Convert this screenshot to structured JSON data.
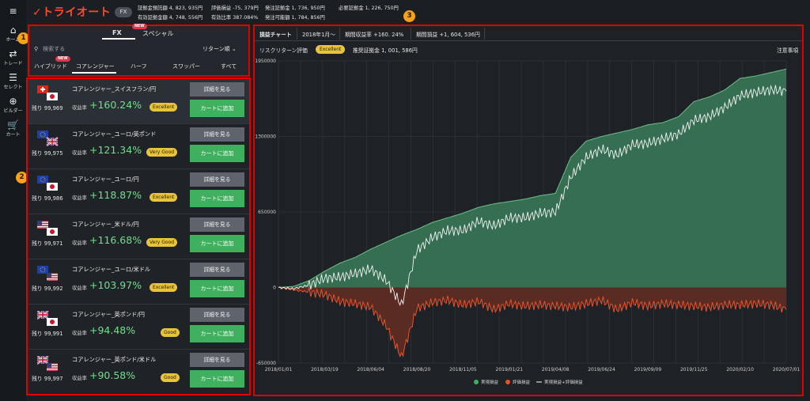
{
  "nav": {
    "items": [
      {
        "icon": "menu-icon",
        "label": ""
      },
      {
        "icon": "home-icon",
        "label": "ホーム"
      },
      {
        "icon": "trade-icon",
        "label": "トレード"
      },
      {
        "icon": "select-icon",
        "label": "セレクト"
      },
      {
        "icon": "builder-icon",
        "label": "ビルダー"
      },
      {
        "icon": "cart-icon",
        "label": "カート"
      }
    ]
  },
  "header": {
    "logo": "トライオート",
    "mode_pill": "FX",
    "stats": [
      "証拠金預託額 4, 823, 935円",
      "評価損益 -75, 379円",
      "発注証拠金 1, 736, 950円",
      "必要証拠金 1, 226, 750円",
      "有効証拠金額 4, 748, 556円",
      "有効比率 387.084%",
      "発注可能額 1, 784, 856円"
    ]
  },
  "markers": {
    "one": "1",
    "two": "2",
    "three": "3"
  },
  "filter": {
    "tabs": [
      "FX",
      "スペシャル"
    ],
    "new_badge": "NEW",
    "search_placeholder": "検索する",
    "sort_label": "リターン順",
    "categories": [
      "ハイブリッド",
      "コアレンジャー",
      "ハーフ",
      "スワッパー",
      "すべて"
    ],
    "active_category": "コアレンジャー"
  },
  "strategies": [
    {
      "name": "コアレンジャー_スイスフラン/円",
      "remaining": "残り 99,969",
      "return_label": "収益率",
      "return": "+160.24%",
      "grade": "Excellent",
      "detail": "詳細を見る",
      "cart": "カートに追加",
      "flag": [
        "ch",
        "jp"
      ]
    },
    {
      "name": "コアレンジャー_ユーロ/英ポンド",
      "remaining": "残り 99,975",
      "return_label": "収益率",
      "return": "+121.34%",
      "grade": "Very Good",
      "detail": "詳細を見る",
      "cart": "カートに追加",
      "flag": [
        "eu",
        "gb"
      ]
    },
    {
      "name": "コアレンジャー_ユーロ/円",
      "remaining": "残り 99,986",
      "return_label": "収益率",
      "return": "+118.87%",
      "grade": "Excellent",
      "detail": "詳細を見る",
      "cart": "カートに追加",
      "flag": [
        "eu",
        "jp"
      ]
    },
    {
      "name": "コアレンジャー_米ドル/円",
      "remaining": "残り 99,971",
      "return_label": "収益率",
      "return": "+116.68%",
      "grade": "Very Good",
      "detail": "詳細を見る",
      "cart": "カートに追加",
      "flag": [
        "us",
        "jp"
      ]
    },
    {
      "name": "コアレンジャー_ユーロ/米ドル",
      "remaining": "残り 99,992",
      "return_label": "収益率",
      "return": "+103.97%",
      "grade": "Excellent",
      "detail": "詳細を見る",
      "cart": "カートに追加",
      "flag": [
        "eu",
        "us"
      ]
    },
    {
      "name": "コアレンジャー_英ポンド/円",
      "remaining": "残り 99,991",
      "return_label": "収益率",
      "return": "+94.48%",
      "grade": "Good",
      "detail": "詳細を見る",
      "cart": "カートに追加",
      "flag": [
        "gb",
        "jp"
      ]
    },
    {
      "name": "コアレンジャー_英ポンド/米ドル",
      "remaining": "残り 99,997",
      "return_label": "収益率",
      "return": "+90.58%",
      "grade": "Good",
      "detail": "詳細を見る",
      "cart": "カートに追加",
      "flag": [
        "gb",
        "us"
      ]
    }
  ],
  "detail_panel": {
    "tabs": [
      "損益チャート",
      "2018年1月〜",
      "期間収益率 +160. 24%",
      "期間損益 +1, 604, 536円"
    ],
    "risk_label": "リスクリターン評価",
    "risk_grade": "Excellent",
    "margin_label": "推奨証拠金 1, 001, 586円",
    "notes_link": "注意事項"
  },
  "chart_data": {
    "type": "area",
    "x_ticks": [
      "2018/01/01",
      "2018/03/19",
      "2018/06/04",
      "2018/08/20",
      "2018/11/05",
      "2019/01/21",
      "2019/04/08",
      "2019/06/24",
      "2019/09/09",
      "2019/11/25",
      "2020/02/10",
      "2020/07/01"
    ],
    "y_ticks": [
      "-650000",
      "0",
      "650000",
      "1300000",
      "1950000"
    ],
    "ylim": [
      -650000,
      1950000
    ],
    "legend": [
      "実現損益",
      "評価損益",
      "実現損益+評価損益"
    ],
    "legend_position": "bottom",
    "colors": {
      "realized": "#3f8f62",
      "unrealized": "#e5532a",
      "total": "#ffffff"
    },
    "series": [
      {
        "name": "実現損益",
        "values": [
          0,
          10000,
          60000,
          140000,
          210000,
          260000,
          330000,
          390000,
          450000,
          500000,
          560000,
          600000,
          640000,
          690000,
          720000,
          740000,
          760000,
          790000,
          810000,
          1120000,
          1260000,
          1300000,
          1330000,
          1360000,
          1400000,
          1420000,
          1470000,
          1600000,
          1640000,
          1700000,
          1800000,
          1820000,
          1850000,
          1880000
        ]
      },
      {
        "name": "評価損益",
        "values": [
          0,
          -20000,
          -40000,
          -60000,
          -120000,
          -140000,
          -170000,
          -330000,
          -600000,
          -180000,
          -130000,
          -110000,
          -150000,
          -120000,
          -190000,
          -140000,
          -160000,
          -150000,
          -160000,
          -170000,
          -140000,
          -110000,
          -190000,
          -130000,
          -160000,
          -140000,
          -150000,
          -160000,
          -170000,
          -150000,
          -150000,
          -140000,
          -150000,
          -190000
        ]
      },
      {
        "name": "実現損益+評価損益",
        "values": [
          0,
          -10000,
          20000,
          80000,
          90000,
          120000,
          160000,
          60000,
          -150000,
          320000,
          430000,
          490000,
          490000,
          570000,
          530000,
          600000,
          600000,
          640000,
          650000,
          950000,
          1120000,
          1190000,
          1140000,
          1230000,
          1240000,
          1280000,
          1320000,
          1440000,
          1470000,
          1550000,
          1650000,
          1680000,
          1700000,
          1690000
        ]
      }
    ]
  }
}
